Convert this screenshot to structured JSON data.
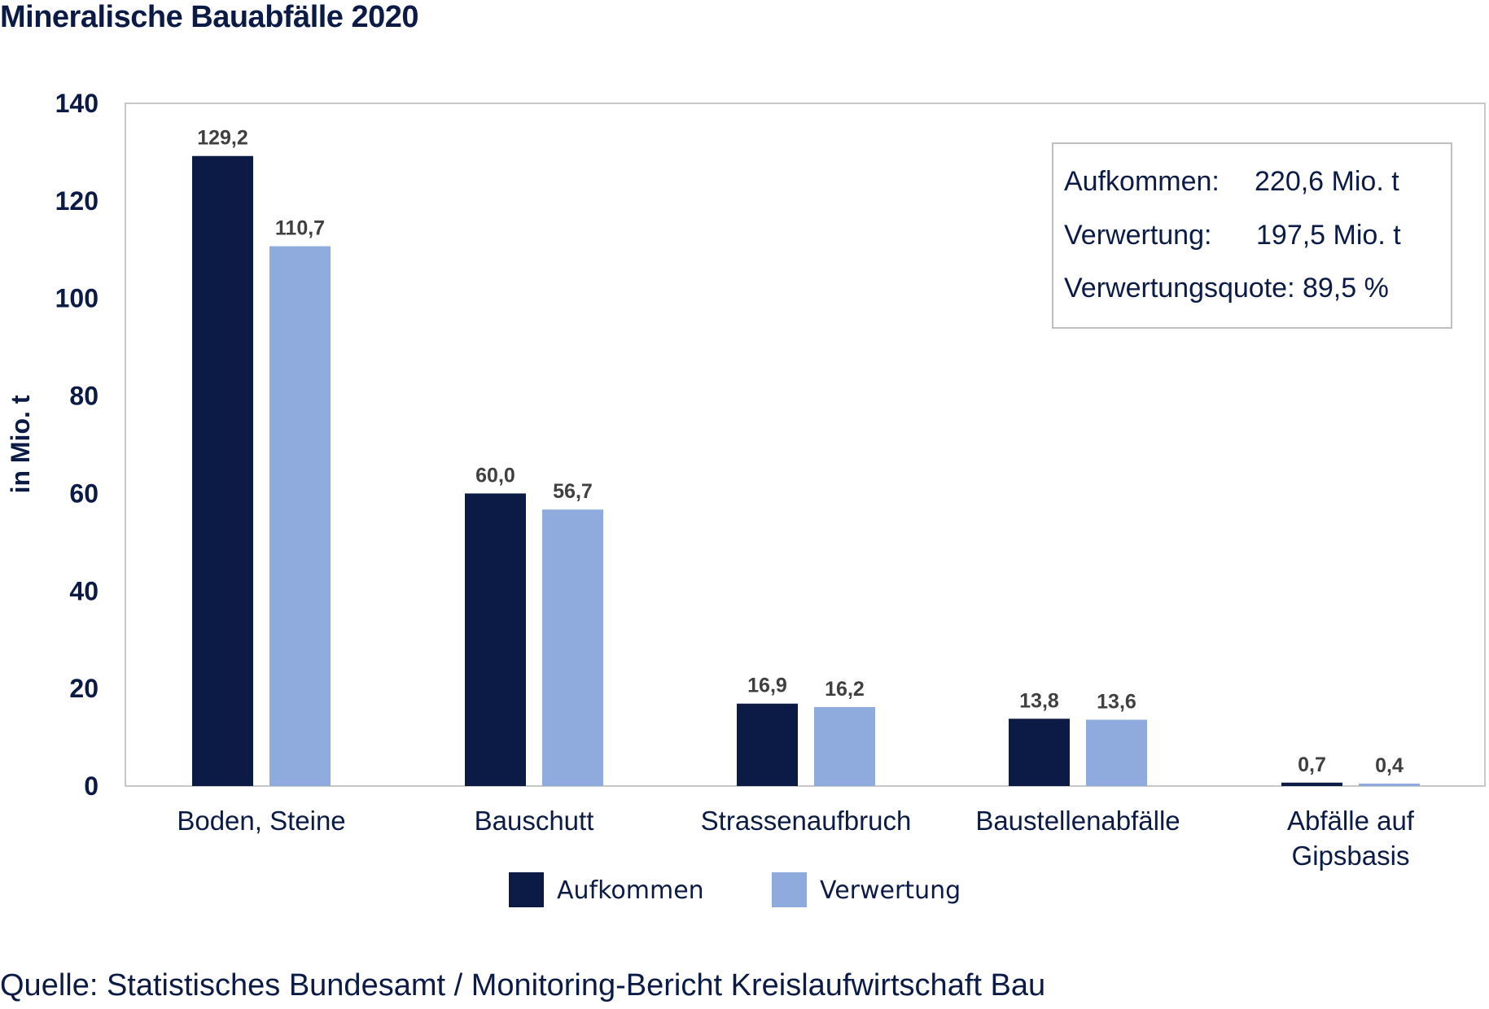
{
  "title": "Mineralische Bauabfälle 2020",
  "source": "Quelle: Statistisches Bundesamt / Monitoring-Bericht Kreislaufwirtschaft Bau",
  "summary_box": {
    "line1_label": "Aufkommen:",
    "line1_value": "220,6 Mio. t",
    "line2_label": "Verwertung:",
    "line2_value": "197,5 Mio. t",
    "line3": "Verwertungsquote: 89,5 %"
  },
  "chart_data": {
    "type": "bar",
    "title": "Mineralische Bauabfälle 2020",
    "ylabel": "in Mio. t",
    "xlabel": "",
    "ylim": [
      0,
      140
    ],
    "yticks": [
      0,
      20,
      40,
      60,
      80,
      100,
      120,
      140
    ],
    "categories": [
      [
        "Boden, Steine"
      ],
      [
        "Bauschutt"
      ],
      [
        "Strassenaufbruch"
      ],
      [
        "Baustellenabfälle"
      ],
      [
        "Abfälle auf",
        "Gipsbasis"
      ]
    ],
    "series": [
      {
        "name": "Aufkommen",
        "color": "#0b1b46",
        "values": [
          129.2,
          60.0,
          16.9,
          13.8,
          0.7
        ],
        "labels": [
          "129,2",
          "60,0",
          "16,9",
          "13,8",
          "0,7"
        ]
      },
      {
        "name": "Verwertung",
        "color": "#8faadc",
        "values": [
          110.7,
          56.7,
          16.2,
          13.6,
          0.4
        ],
        "labels": [
          "110,7",
          "56,7",
          "16,2",
          "13,6",
          "0,4"
        ]
      }
    ],
    "grid": false,
    "legend": "bottom"
  }
}
